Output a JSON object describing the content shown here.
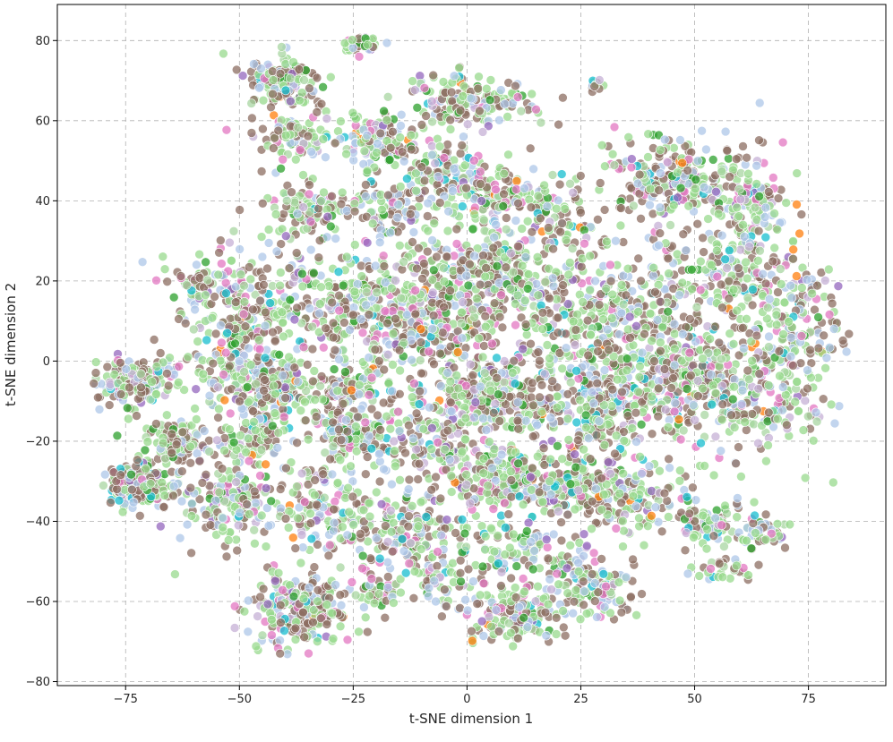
{
  "chart_data": {
    "type": "scatter",
    "title": "",
    "xlabel": "t-SNE dimension 1",
    "ylabel": "t-SNE dimension 2",
    "xlim": [
      -90,
      92
    ],
    "ylim": [
      -81,
      89
    ],
    "xticks": [
      -75,
      -50,
      -25,
      0,
      25,
      50,
      75
    ],
    "yticks": [
      -80,
      -60,
      -40,
      -20,
      0,
      20,
      40,
      60,
      80
    ],
    "xtick_labels": [
      "−75",
      "−50",
      "−25",
      "0",
      "25",
      "50",
      "75"
    ],
    "ytick_labels": [
      "−80",
      "−60",
      "−40",
      "−20",
      "0",
      "20",
      "40",
      "60",
      "80"
    ],
    "grid": true,
    "legend": "none",
    "point_alpha": 0.75,
    "palette": [
      "#8c6d62",
      "#98d98e",
      "#aec7e8",
      "#c5b0d5",
      "#e377c2",
      "#17becf",
      "#2ca02c",
      "#9467bd",
      "#ff7f0e",
      "#a8d5a2"
    ],
    "clusters": [
      {
        "cx": -72,
        "cy": -31,
        "sx": 3.5,
        "sy": 2.8,
        "n": 230
      },
      {
        "cx": -73,
        "cy": -5,
        "sx": 4.0,
        "sy": 3.0,
        "n": 170
      },
      {
        "cx": -64,
        "cy": -20,
        "sx": 2.8,
        "sy": 2.6,
        "n": 90
      },
      {
        "cx": -37,
        "cy": -62,
        "sx": 5.5,
        "sy": 4.2,
        "n": 240
      },
      {
        "cx": -40,
        "cy": 70,
        "sx": 4.0,
        "sy": 3.2,
        "n": 150
      },
      {
        "cx": -38,
        "cy": 56,
        "sx": 3.8,
        "sy": 3.0,
        "n": 80
      },
      {
        "cx": -24,
        "cy": 79,
        "sx": 1.8,
        "sy": 1.2,
        "n": 40
      },
      {
        "cx": -35,
        "cy": 38,
        "sx": 3.5,
        "sy": 3.0,
        "n": 70
      },
      {
        "cx": -20,
        "cy": 55,
        "sx": 4.5,
        "sy": 3.5,
        "n": 110
      },
      {
        "cx": -2,
        "cy": 65,
        "sx": 5.0,
        "sy": 3.5,
        "n": 130
      },
      {
        "cx": 10,
        "cy": 65,
        "sx": 2.5,
        "sy": 2.5,
        "n": 30
      },
      {
        "cx": 28,
        "cy": 69,
        "sx": 0.8,
        "sy": 0.8,
        "n": 12
      },
      {
        "cx": -5,
        "cy": 48,
        "sx": 5.0,
        "sy": 4.0,
        "n": 100
      },
      {
        "cx": 5,
        "cy": 42,
        "sx": 5.0,
        "sy": 3.5,
        "n": 100
      },
      {
        "cx": -18,
        "cy": 38,
        "sx": 6.0,
        "sy": 4.0,
        "n": 90
      },
      {
        "cx": 18,
        "cy": 38,
        "sx": 6.0,
        "sy": 4.0,
        "n": 70
      },
      {
        "cx": 45,
        "cy": 45,
        "sx": 8.0,
        "sy": 4.5,
        "n": 220
      },
      {
        "cx": 62,
        "cy": 40,
        "sx": 4.0,
        "sy": 4.5,
        "n": 90
      },
      {
        "cx": 58,
        "cy": 22,
        "sx": 8.0,
        "sy": 6.0,
        "n": 170
      },
      {
        "cx": 75,
        "cy": 10,
        "sx": 5.0,
        "sy": 6.0,
        "n": 100
      },
      {
        "cx": 66,
        "cy": -6,
        "sx": 7.0,
        "sy": 6.0,
        "n": 180
      },
      {
        "cx": 44,
        "cy": -5,
        "sx": 8.0,
        "sy": 7.0,
        "n": 210
      },
      {
        "cx": 32,
        "cy": 12,
        "sx": 8.0,
        "sy": 7.0,
        "n": 200
      },
      {
        "cx": 5,
        "cy": 22,
        "sx": 7.0,
        "sy": 5.0,
        "n": 220
      },
      {
        "cx": -10,
        "cy": 10,
        "sx": 7.0,
        "sy": 6.0,
        "n": 200
      },
      {
        "cx": -25,
        "cy": 15,
        "sx": 7.0,
        "sy": 6.0,
        "n": 170
      },
      {
        "cx": -50,
        "cy": 12,
        "sx": 6.0,
        "sy": 7.0,
        "n": 180
      },
      {
        "cx": -48,
        "cy": -5,
        "sx": 5.5,
        "sy": 4.0,
        "n": 110
      },
      {
        "cx": -40,
        "cy": -6,
        "sx": 3.5,
        "sy": 3.0,
        "n": 80
      },
      {
        "cx": -27,
        "cy": -7,
        "sx": 3.0,
        "sy": 2.5,
        "n": 60
      },
      {
        "cx": -27,
        "cy": -18,
        "sx": 4.0,
        "sy": 3.5,
        "n": 110
      },
      {
        "cx": -52,
        "cy": -35,
        "sx": 5.0,
        "sy": 5.0,
        "n": 160
      },
      {
        "cx": -47,
        "cy": -19,
        "sx": 4.0,
        "sy": 3.0,
        "n": 70
      },
      {
        "cx": -30,
        "cy": -38,
        "sx": 5.0,
        "sy": 5.0,
        "n": 120
      },
      {
        "cx": -12,
        "cy": -42,
        "sx": 6.0,
        "sy": 5.0,
        "n": 130
      },
      {
        "cx": 2,
        "cy": -8,
        "sx": 4.0,
        "sy": 3.5,
        "n": 120
      },
      {
        "cx": 12,
        "cy": -10,
        "sx": 7.0,
        "sy": 6.0,
        "n": 150
      },
      {
        "cx": -8,
        "cy": -20,
        "sx": 7.0,
        "sy": 5.0,
        "n": 130
      },
      {
        "cx": 8,
        "cy": -30,
        "sx": 6.0,
        "sy": 4.0,
        "n": 190
      },
      {
        "cx": 25,
        "cy": -32,
        "sx": 6.0,
        "sy": 4.0,
        "n": 160
      },
      {
        "cx": 30,
        "cy": -12,
        "sx": 6.0,
        "sy": 6.0,
        "n": 140
      },
      {
        "cx": 38,
        "cy": -35,
        "sx": 6.0,
        "sy": 5.0,
        "n": 90
      },
      {
        "cx": 12,
        "cy": -47,
        "sx": 6.0,
        "sy": 4.0,
        "n": 90
      },
      {
        "cx": 10,
        "cy": -63,
        "sx": 5.0,
        "sy": 4.0,
        "n": 140
      },
      {
        "cx": 28,
        "cy": -57,
        "sx": 5.0,
        "sy": 4.0,
        "n": 130
      },
      {
        "cx": 54,
        "cy": -40,
        "sx": 4.0,
        "sy": 2.5,
        "n": 70
      },
      {
        "cx": 55,
        "cy": -52,
        "sx": 3.0,
        "sy": 1.5,
        "n": 30
      },
      {
        "cx": 65,
        "cy": -43,
        "sx": 2.5,
        "sy": 2.0,
        "n": 45
      },
      {
        "cx": -20,
        "cy": -57,
        "sx": 4.0,
        "sy": 3.0,
        "n": 50
      },
      {
        "cx": -5,
        "cy": -55,
        "sx": 4.0,
        "sy": 3.0,
        "n": 50
      },
      {
        "cx": -60,
        "cy": 20,
        "sx": 2.5,
        "sy": 2.0,
        "n": 30
      },
      {
        "cx": 10,
        "cy": 5,
        "sx": 18.0,
        "sy": 22.0,
        "n": 450
      },
      {
        "cx": -35,
        "cy": 0,
        "sx": 18.0,
        "sy": 22.0,
        "n": 350
      },
      {
        "cx": 50,
        "cy": 5,
        "sx": 14.0,
        "sy": 20.0,
        "n": 250
      }
    ]
  }
}
